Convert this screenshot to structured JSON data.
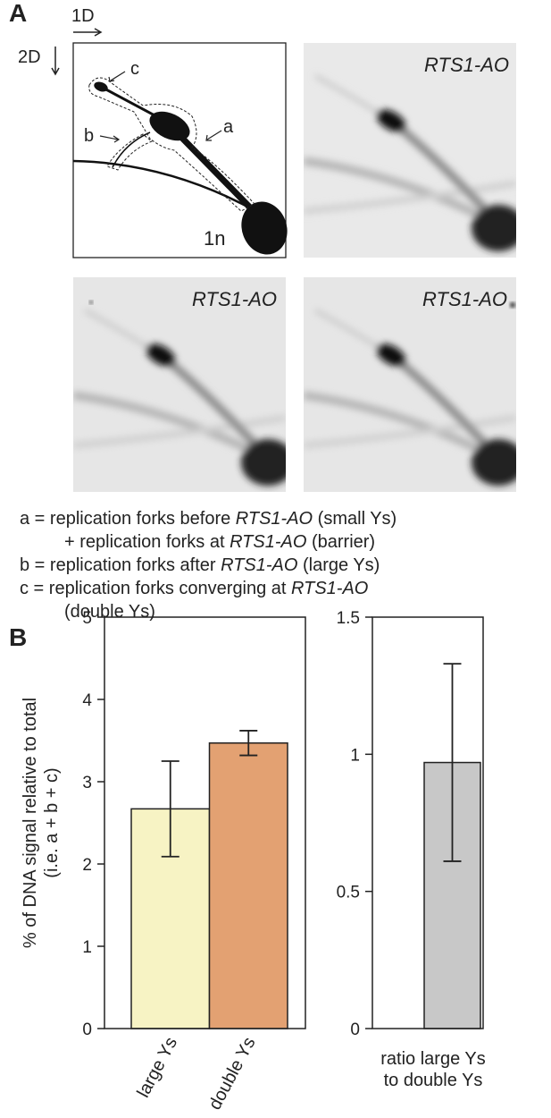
{
  "panel_a": {
    "label": "A",
    "axis_1d": "1D",
    "axis_2d": "2D",
    "schematic": {
      "a": "a",
      "b": "b",
      "c": "c",
      "spot": "1n"
    },
    "gels": [
      "RTS1-AO",
      "RTS1-AO",
      "RTS1-AO"
    ],
    "legend": [
      [
        {
          "text": "a = replication forks before "
        },
        {
          "text": "RTS1-AO",
          "italic": true
        },
        {
          "text": " (small Ys)"
        }
      ],
      [
        {
          "text": "+ replication forks at "
        },
        {
          "text": "RTS1-AO",
          "italic": true
        },
        {
          "text": " (barrier)"
        }
      ],
      [
        {
          "text": "b = replication forks after "
        },
        {
          "text": "RTS1-AO",
          "italic": true
        },
        {
          "text": " (large Ys)"
        }
      ],
      [
        {
          "text": "c = replication forks converging at "
        },
        {
          "text": "RTS1-AO",
          "italic": true
        }
      ],
      [
        {
          "text": "(double Ys)"
        }
      ]
    ]
  },
  "panel_b": {
    "label": "B"
  },
  "chart_data": [
    {
      "type": "bar",
      "ylabel": [
        "% of DNA signal relative to total",
        "(i.e. a + b + c)"
      ],
      "categories": [
        "large Ys",
        "double Ys"
      ],
      "values": [
        2.67,
        3.47
      ],
      "errors": [
        0.58,
        0.15
      ],
      "colors": [
        "#f7f3c4",
        "#e3a172"
      ],
      "ylim": [
        0,
        5
      ],
      "yticks": [
        0,
        1,
        2,
        3,
        4,
        5
      ]
    },
    {
      "type": "bar",
      "categories": [
        "ratio large Ys\nto double Ys"
      ],
      "values": [
        0.97
      ],
      "errors": [
        0.36
      ],
      "colors": [
        "#c8c8c8"
      ],
      "ylim": [
        0,
        1.5
      ],
      "yticks": [
        0,
        0.5,
        1,
        1.5
      ]
    }
  ]
}
